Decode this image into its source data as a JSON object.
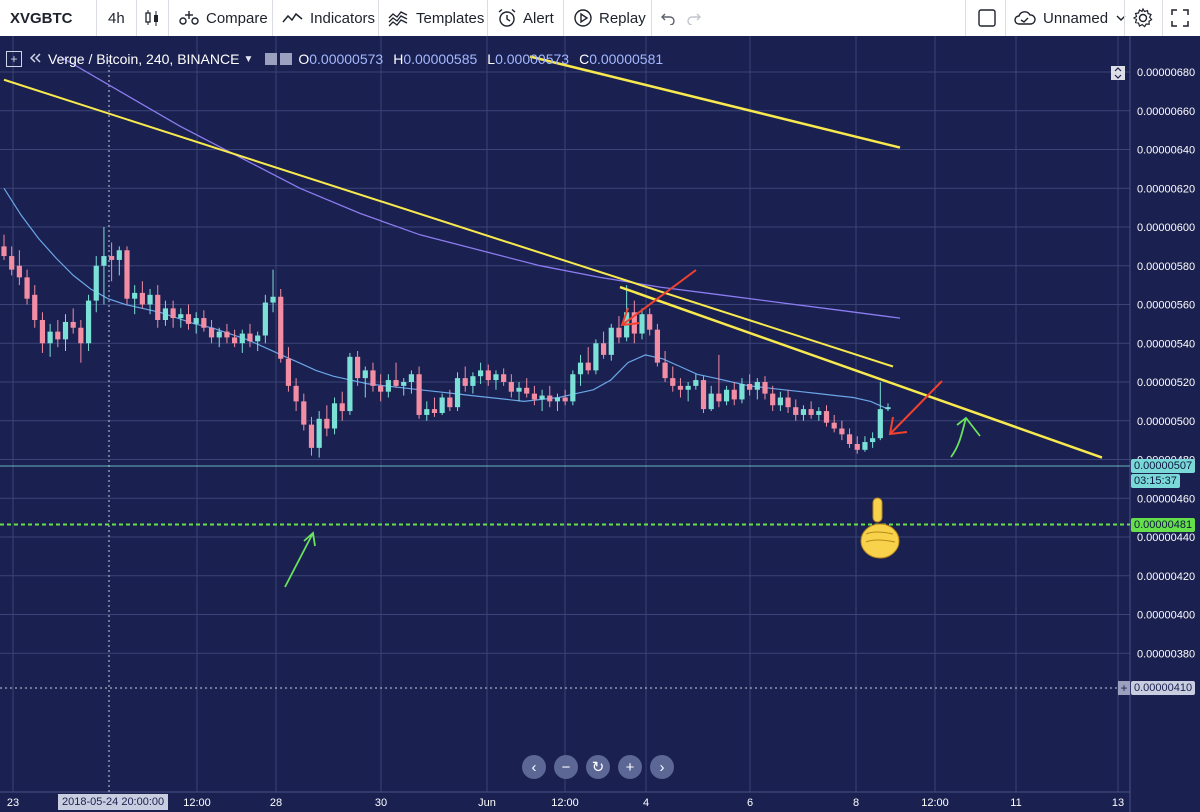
{
  "toolbar": {
    "symbol": "XVGBTC",
    "interval": "4h",
    "compare_label": "Compare",
    "indicators_label": "Indicators",
    "templates_label": "Templates",
    "alert_label": "Alert",
    "replay_label": "Replay",
    "layout_name": "Unnamed"
  },
  "legend": {
    "title": "Verge / Bitcoin, 240, BINANCE",
    "open_key": "O",
    "open": "0.00000573",
    "high_key": "H",
    "high": "0.00000585",
    "low_key": "L",
    "low": "0.00000573",
    "close_key": "C",
    "close": "0.00000581"
  },
  "price_axis": {
    "ticks": [
      "0.00000680",
      "0.00000660",
      "0.00000640",
      "0.00000620",
      "0.00000600",
      "0.00000580",
      "0.00000560",
      "0.00000540",
      "0.00000520",
      "0.00000500",
      "0.00000480",
      "0.00000460",
      "0.00000440",
      "0.00000420",
      "0.00000400",
      "0.00000380"
    ],
    "last_price": "0.00000507",
    "countdown": "03:15:37",
    "support_price": "0.00000481",
    "crosshair_price": "0.00000410"
  },
  "time_axis": {
    "labels": [
      "23",
      "12:00",
      "28",
      "30",
      "Jun",
      "12:00",
      "4",
      "6",
      "8",
      "12:00",
      "11",
      "13"
    ],
    "crosshair_time": "2018-05-24 20:00:00"
  },
  "colors": {
    "background": "#1a2050",
    "up_candle": "#7be0d6",
    "down_candle": "#f28da4",
    "trendline": "#f7e94e",
    "ma_fast": "#6aa6e8",
    "ma_slow": "#8b7cf0",
    "support": "#65e04a",
    "annotation_red": "#f2412f",
    "annotation_green": "#69e25c"
  },
  "chart_data": {
    "type": "candlestick",
    "title": "Verge / Bitcoin, 240, BINANCE",
    "xlabel": "",
    "ylabel": "",
    "ylim": [
      3.7e-06,
      6.88e-06
    ],
    "grid": true,
    "candles": [
      {
        "o": 5.9e-06,
        "h": 5.96e-06,
        "l": 5.83e-06,
        "c": 5.85e-06
      },
      {
        "o": 5.85e-06,
        "h": 5.9e-06,
        "l": 5.75e-06,
        "c": 5.78e-06
      },
      {
        "o": 5.8e-06,
        "h": 5.88e-06,
        "l": 5.7e-06,
        "c": 5.74e-06
      },
      {
        "o": 5.74e-06,
        "h": 5.78e-06,
        "l": 5.6e-06,
        "c": 5.63e-06
      },
      {
        "o": 5.65e-06,
        "h": 5.7e-06,
        "l": 5.48e-06,
        "c": 5.52e-06
      },
      {
        "o": 5.52e-06,
        "h": 5.56e-06,
        "l": 5.35e-06,
        "c": 5.4e-06
      },
      {
        "o": 5.4e-06,
        "h": 5.5e-06,
        "l": 5.33e-06,
        "c": 5.46e-06
      },
      {
        "o": 5.46e-06,
        "h": 5.52e-06,
        "l": 5.38e-06,
        "c": 5.42e-06
      },
      {
        "o": 5.42e-06,
        "h": 5.55e-06,
        "l": 5.36e-06,
        "c": 5.51e-06
      },
      {
        "o": 5.51e-06,
        "h": 5.58e-06,
        "l": 5.45e-06,
        "c": 5.48e-06
      },
      {
        "o": 5.48e-06,
        "h": 5.52e-06,
        "l": 5.3e-06,
        "c": 5.4e-06
      },
      {
        "o": 5.4e-06,
        "h": 5.65e-06,
        "l": 5.36e-06,
        "c": 5.62e-06
      },
      {
        "o": 5.62e-06,
        "h": 5.85e-06,
        "l": 5.56e-06,
        "c": 5.8e-06
      },
      {
        "o": 5.8e-06,
        "h": 6e-06,
        "l": 5.6e-06,
        "c": 5.85e-06
      },
      {
        "o": 5.85e-06,
        "h": 5.92e-06,
        "l": 5.72e-06,
        "c": 5.83e-06
      },
      {
        "o": 5.83e-06,
        "h": 5.9e-06,
        "l": 5.75e-06,
        "c": 5.88e-06
      },
      {
        "o": 5.88e-06,
        "h": 5.9e-06,
        "l": 5.6e-06,
        "c": 5.63e-06
      },
      {
        "o": 5.63e-06,
        "h": 5.7e-06,
        "l": 5.55e-06,
        "c": 5.66e-06
      },
      {
        "o": 5.66e-06,
        "h": 5.72e-06,
        "l": 5.58e-06,
        "c": 5.6e-06
      },
      {
        "o": 5.6e-06,
        "h": 5.68e-06,
        "l": 5.55e-06,
        "c": 5.65e-06
      },
      {
        "o": 5.65e-06,
        "h": 5.7e-06,
        "l": 5.48e-06,
        "c": 5.52e-06
      },
      {
        "o": 5.52e-06,
        "h": 5.62e-06,
        "l": 5.49e-06,
        "c": 5.58e-06
      },
      {
        "o": 5.58e-06,
        "h": 5.62e-06,
        "l": 5.48e-06,
        "c": 5.53e-06
      },
      {
        "o": 5.53e-06,
        "h": 5.58e-06,
        "l": 5.48e-06,
        "c": 5.55e-06
      },
      {
        "o": 5.55e-06,
        "h": 5.6e-06,
        "l": 5.47e-06,
        "c": 5.5e-06
      },
      {
        "o": 5.5e-06,
        "h": 5.56e-06,
        "l": 5.45e-06,
        "c": 5.53e-06
      },
      {
        "o": 5.53e-06,
        "h": 5.57e-06,
        "l": 5.46e-06,
        "c": 5.48e-06
      },
      {
        "o": 5.48e-06,
        "h": 5.52e-06,
        "l": 5.4e-06,
        "c": 5.43e-06
      },
      {
        "o": 5.43e-06,
        "h": 5.48e-06,
        "l": 5.38e-06,
        "c": 5.46e-06
      },
      {
        "o": 5.46e-06,
        "h": 5.5e-06,
        "l": 5.4e-06,
        "c": 5.43e-06
      },
      {
        "o": 5.43e-06,
        "h": 5.47e-06,
        "l": 5.38e-06,
        "c": 5.4e-06
      },
      {
        "o": 5.4e-06,
        "h": 5.47e-06,
        "l": 5.35e-06,
        "c": 5.45e-06
      },
      {
        "o": 5.45e-06,
        "h": 5.5e-06,
        "l": 5.38e-06,
        "c": 5.41e-06
      },
      {
        "o": 5.41e-06,
        "h": 5.46e-06,
        "l": 5.36e-06,
        "c": 5.44e-06
      },
      {
        "o": 5.44e-06,
        "h": 5.65e-06,
        "l": 5.4e-06,
        "c": 5.61e-06
      },
      {
        "o": 5.61e-06,
        "h": 5.78e-06,
        "l": 5.56e-06,
        "c": 5.64e-06
      },
      {
        "o": 5.64e-06,
        "h": 5.68e-06,
        "l": 5.3e-06,
        "c": 5.32e-06
      },
      {
        "o": 5.32e-06,
        "h": 5.38e-06,
        "l": 5.15e-06,
        "c": 5.18e-06
      },
      {
        "o": 5.18e-06,
        "h": 5.22e-06,
        "l": 5.05e-06,
        "c": 5.1e-06
      },
      {
        "o": 5.1e-06,
        "h": 5.14e-06,
        "l": 4.95e-06,
        "c": 4.98e-06
      },
      {
        "o": 4.98e-06,
        "h": 5.02e-06,
        "l": 4.82e-06,
        "c": 4.86e-06
      },
      {
        "o": 4.86e-06,
        "h": 5.05e-06,
        "l": 4.81e-06,
        "c": 5.01e-06
      },
      {
        "o": 5.01e-06,
        "h": 5.08e-06,
        "l": 4.92e-06,
        "c": 4.96e-06
      },
      {
        "o": 4.96e-06,
        "h": 5.12e-06,
        "l": 4.93e-06,
        "c": 5.09e-06
      },
      {
        "o": 5.09e-06,
        "h": 5.15e-06,
        "l": 5e-06,
        "c": 5.05e-06
      },
      {
        "o": 5.05e-06,
        "h": 5.35e-06,
        "l": 5.03e-06,
        "c": 5.33e-06
      },
      {
        "o": 5.33e-06,
        "h": 5.36e-06,
        "l": 5.18e-06,
        "c": 5.22e-06
      },
      {
        "o": 5.22e-06,
        "h": 5.28e-06,
        "l": 5.12e-06,
        "c": 5.26e-06
      },
      {
        "o": 5.26e-06,
        "h": 5.3e-06,
        "l": 5.15e-06,
        "c": 5.18e-06
      },
      {
        "o": 5.18e-06,
        "h": 5.24e-06,
        "l": 5.1e-06,
        "c": 5.15e-06
      },
      {
        "o": 5.15e-06,
        "h": 5.24e-06,
        "l": 5.12e-06,
        "c": 5.21e-06
      },
      {
        "o": 5.21e-06,
        "h": 5.3e-06,
        "l": 5.17e-06,
        "c": 5.18e-06
      },
      {
        "o": 5.18e-06,
        "h": 5.22e-06,
        "l": 5.13e-06,
        "c": 5.2e-06
      },
      {
        "o": 5.2e-06,
        "h": 5.26e-06,
        "l": 5.14e-06,
        "c": 5.24e-06
      },
      {
        "o": 5.24e-06,
        "h": 5.28e-06,
        "l": 5.01e-06,
        "c": 5.03e-06
      },
      {
        "o": 5.03e-06,
        "h": 5.1e-06,
        "l": 5e-06,
        "c": 5.06e-06
      },
      {
        "o": 5.06e-06,
        "h": 5.12e-06,
        "l": 5.02e-06,
        "c": 5.04e-06
      },
      {
        "o": 5.04e-06,
        "h": 5.14e-06,
        "l": 5.03e-06,
        "c": 5.12e-06
      },
      {
        "o": 5.12e-06,
        "h": 5.16e-06,
        "l": 5.05e-06,
        "c": 5.07e-06
      },
      {
        "o": 5.07e-06,
        "h": 5.25e-06,
        "l": 5.05e-06,
        "c": 5.22e-06
      },
      {
        "o": 5.22e-06,
        "h": 5.28e-06,
        "l": 5.15e-06,
        "c": 5.18e-06
      },
      {
        "o": 5.18e-06,
        "h": 5.25e-06,
        "l": 5.14e-06,
        "c": 5.23e-06
      },
      {
        "o": 5.23e-06,
        "h": 5.3e-06,
        "l": 5.19e-06,
        "c": 5.26e-06
      },
      {
        "o": 5.26e-06,
        "h": 5.29e-06,
        "l": 5.18e-06,
        "c": 5.21e-06
      },
      {
        "o": 5.21e-06,
        "h": 5.26e-06,
        "l": 5.16e-06,
        "c": 5.24e-06
      },
      {
        "o": 5.24e-06,
        "h": 5.27e-06,
        "l": 5.18e-06,
        "c": 5.2e-06
      },
      {
        "o": 5.2e-06,
        "h": 5.24e-06,
        "l": 5.12e-06,
        "c": 5.15e-06
      },
      {
        "o": 5.15e-06,
        "h": 5.2e-06,
        "l": 5.1e-06,
        "c": 5.17e-06
      },
      {
        "o": 5.17e-06,
        "h": 5.22e-06,
        "l": 5.12e-06,
        "c": 5.14e-06
      },
      {
        "o": 5.14e-06,
        "h": 5.18e-06,
        "l": 5.08e-06,
        "c": 5.11e-06
      },
      {
        "o": 5.11e-06,
        "h": 5.16e-06,
        "l": 5.05e-06,
        "c": 5.13e-06
      },
      {
        "o": 5.13e-06,
        "h": 5.18e-06,
        "l": 5.07e-06,
        "c": 5.1e-06
      },
      {
        "o": 5.1e-06,
        "h": 5.14e-06,
        "l": 5.05e-06,
        "c": 5.12e-06
      },
      {
        "o": 5.12e-06,
        "h": 5.16e-06,
        "l": 5.08e-06,
        "c": 5.1e-06
      },
      {
        "o": 5.1e-06,
        "h": 5.26e-06,
        "l": 5.08e-06,
        "c": 5.24e-06
      },
      {
        "o": 5.24e-06,
        "h": 5.34e-06,
        "l": 5.18e-06,
        "c": 5.3e-06
      },
      {
        "o": 5.3e-06,
        "h": 5.38e-06,
        "l": 5.24e-06,
        "c": 5.26e-06
      },
      {
        "o": 5.26e-06,
        "h": 5.42e-06,
        "l": 5.24e-06,
        "c": 5.4e-06
      },
      {
        "o": 5.4e-06,
        "h": 5.46e-06,
        "l": 5.32e-06,
        "c": 5.34e-06
      },
      {
        "o": 5.34e-06,
        "h": 5.5e-06,
        "l": 5.31e-06,
        "c": 5.48e-06
      },
      {
        "o": 5.48e-06,
        "h": 5.54e-06,
        "l": 5.4e-06,
        "c": 5.43e-06
      },
      {
        "o": 5.43e-06,
        "h": 5.7e-06,
        "l": 5.41e-06,
        "c": 5.56e-06
      },
      {
        "o": 5.56e-06,
        "h": 5.62e-06,
        "l": 5.4e-06,
        "c": 5.45e-06
      },
      {
        "o": 5.45e-06,
        "h": 5.58e-06,
        "l": 5.42e-06,
        "c": 5.55e-06
      },
      {
        "o": 5.55e-06,
        "h": 5.58e-06,
        "l": 5.44e-06,
        "c": 5.47e-06
      },
      {
        "o": 5.47e-06,
        "h": 5.5e-06,
        "l": 5.28e-06,
        "c": 5.3e-06
      },
      {
        "o": 5.3e-06,
        "h": 5.36e-06,
        "l": 5.2e-06,
        "c": 5.22e-06
      },
      {
        "o": 5.22e-06,
        "h": 5.28e-06,
        "l": 5.15e-06,
        "c": 5.18e-06
      },
      {
        "o": 5.18e-06,
        "h": 5.22e-06,
        "l": 5.12e-06,
        "c": 5.16e-06
      },
      {
        "o": 5.16e-06,
        "h": 5.2e-06,
        "l": 5.1e-06,
        "c": 5.18e-06
      },
      {
        "o": 5.18e-06,
        "h": 5.24e-06,
        "l": 5.16e-06,
        "c": 5.21e-06
      },
      {
        "o": 5.21e-06,
        "h": 5.23e-06,
        "l": 5.04e-06,
        "c": 5.06e-06
      },
      {
        "o": 5.06e-06,
        "h": 5.18e-06,
        "l": 5.05e-06,
        "c": 5.14e-06
      },
      {
        "o": 5.14e-06,
        "h": 5.34e-06,
        "l": 5.07e-06,
        "c": 5.1e-06
      },
      {
        "o": 5.1e-06,
        "h": 5.18e-06,
        "l": 5.08e-06,
        "c": 5.16e-06
      },
      {
        "o": 5.16e-06,
        "h": 5.2e-06,
        "l": 5.08e-06,
        "c": 5.11e-06
      },
      {
        "o": 5.11e-06,
        "h": 5.22e-06,
        "l": 5.09e-06,
        "c": 5.19e-06
      },
      {
        "o": 5.19e-06,
        "h": 5.24e-06,
        "l": 5.13e-06,
        "c": 5.16e-06
      },
      {
        "o": 5.16e-06,
        "h": 5.22e-06,
        "l": 5.11e-06,
        "c": 5.2e-06
      },
      {
        "o": 5.2e-06,
        "h": 5.23e-06,
        "l": 5.11e-06,
        "c": 5.14e-06
      },
      {
        "o": 5.14e-06,
        "h": 5.18e-06,
        "l": 5.05e-06,
        "c": 5.08e-06
      },
      {
        "o": 5.08e-06,
        "h": 5.15e-06,
        "l": 5.05e-06,
        "c": 5.12e-06
      },
      {
        "o": 5.12e-06,
        "h": 5.16e-06,
        "l": 5.04e-06,
        "c": 5.07e-06
      },
      {
        "o": 5.07e-06,
        "h": 5.11e-06,
        "l": 5e-06,
        "c": 5.03e-06
      },
      {
        "o": 5.03e-06,
        "h": 5.08e-06,
        "l": 5e-06,
        "c": 5.06e-06
      },
      {
        "o": 5.06e-06,
        "h": 5.1e-06,
        "l": 5.01e-06,
        "c": 5.03e-06
      },
      {
        "o": 5.03e-06,
        "h": 5.07e-06,
        "l": 5e-06,
        "c": 5.05e-06
      },
      {
        "o": 5.05e-06,
        "h": 5.08e-06,
        "l": 4.97e-06,
        "c": 4.99e-06
      },
      {
        "o": 4.99e-06,
        "h": 5.03e-06,
        "l": 4.94e-06,
        "c": 4.96e-06
      },
      {
        "o": 4.96e-06,
        "h": 5e-06,
        "l": 4.9e-06,
        "c": 4.93e-06
      },
      {
        "o": 4.93e-06,
        "h": 4.96e-06,
        "l": 4.86e-06,
        "c": 4.88e-06
      },
      {
        "o": 4.88e-06,
        "h": 4.92e-06,
        "l": 4.83e-06,
        "c": 4.85e-06
      },
      {
        "o": 4.85e-06,
        "h": 4.92e-06,
        "l": 4.84e-06,
        "c": 4.89e-06
      },
      {
        "o": 4.89e-06,
        "h": 4.94e-06,
        "l": 4.86e-06,
        "c": 4.91e-06
      },
      {
        "o": 4.91e-06,
        "h": 5.2e-06,
        "l": 4.9e-06,
        "c": 5.06e-06
      },
      {
        "o": 5.06e-06,
        "h": 5.09e-06,
        "l": 5.05e-06,
        "c": 5.07e-06
      }
    ],
    "ma_fast": [
      6.2e-06,
      6.06e-06,
      5.94e-06,
      5.84e-06,
      5.75e-06,
      5.68e-06,
      5.63e-06,
      5.6e-06,
      5.58e-06,
      5.56e-06,
      5.53e-06,
      5.5e-06,
      5.48e-06,
      5.45e-06,
      5.42e-06,
      5.38e-06,
      5.34e-06,
      5.3e-06,
      5.26e-06,
      5.23e-06,
      5.21e-06,
      5.19e-06,
      5.18e-06,
      5.17e-06,
      5.16e-06,
      5.15e-06,
      5.14e-06,
      5.13e-06,
      5.12e-06,
      5.11e-06,
      5.1e-06,
      5.11e-06,
      5.12e-06,
      5.14e-06,
      5.16e-06,
      5.21e-06,
      5.3e-06,
      5.34e-06,
      5.32e-06,
      5.28e-06,
      5.24e-06,
      5.22e-06,
      5.2e-06,
      5.18e-06,
      5.17e-06,
      5.16e-06,
      5.15e-06,
      5.14e-06,
      5.13e-06,
      5.12e-06,
      5.1e-06,
      5.06e-06
    ],
    "ma_slow": [
      6.88e-06,
      6.7e-06,
      6.52e-06,
      6.36e-06,
      6.2e-06,
      6.07e-06,
      5.96e-06,
      5.88e-06,
      5.8e-06,
      5.74e-06,
      5.69e-06,
      5.65e-06,
      5.61e-06,
      5.57e-06,
      5.53e-06
    ],
    "trendlines": [
      {
        "from": 6.76e-06,
        "to": 5.28e-06
      },
      {
        "from": 5.69e-06,
        "to": 4.81e-06
      },
      {
        "from": 6.88e-06,
        "to": 6.41e-06
      }
    ],
    "support_level": 4.81e-06
  }
}
